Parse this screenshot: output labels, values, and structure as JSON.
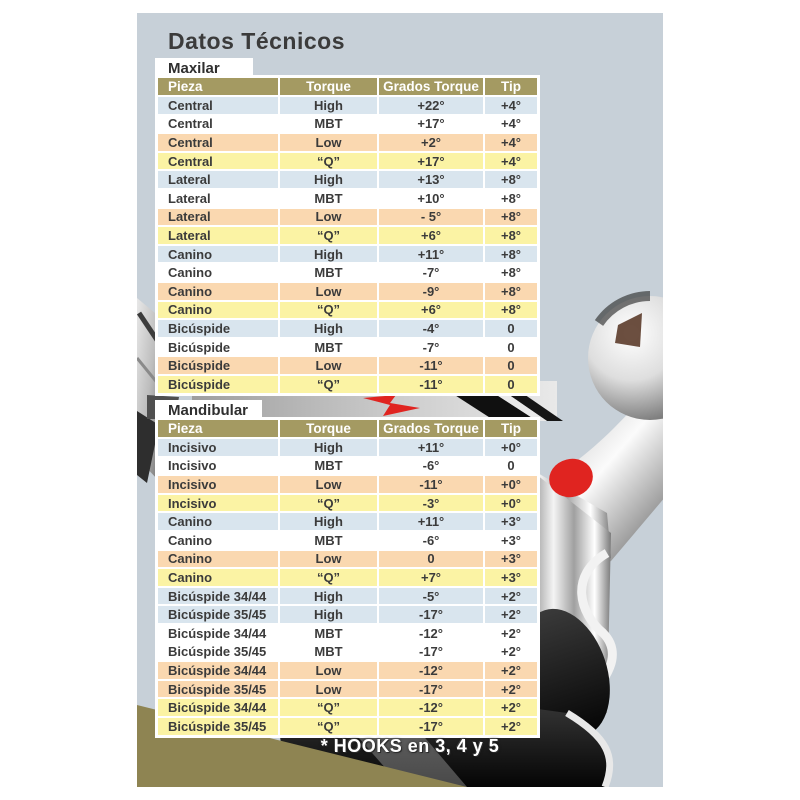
{
  "title": "Datos Técnicos",
  "footnote": "* HOOKS en 3, 4 y 5",
  "columns": [
    "Pieza",
    "Torque",
    "Grados Torque",
    "Tip"
  ],
  "tables": [
    {
      "tab": "Maxilar",
      "rows": [
        {
          "pieza": "Central",
          "torque": "High",
          "grados": "+22°",
          "tip": "+4°",
          "c": "rblue"
        },
        {
          "pieza": "Central",
          "torque": "MBT",
          "grados": "+17°",
          "tip": "+4°",
          "c": "rwhite"
        },
        {
          "pieza": "Central",
          "torque": "Low",
          "grados": "+2°",
          "tip": "+4°",
          "c": "rpeach"
        },
        {
          "pieza": "Central",
          "torque": "“Q”",
          "grados": "+17°",
          "tip": "+4°",
          "c": "ryellow"
        },
        {
          "pieza": "Lateral",
          "torque": "High",
          "grados": "+13°",
          "tip": "+8°",
          "c": "rblue"
        },
        {
          "pieza": "Lateral",
          "torque": "MBT",
          "grados": "+10°",
          "tip": "+8°",
          "c": "rwhite"
        },
        {
          "pieza": "Lateral",
          "torque": "Low",
          "grados": "- 5°",
          "tip": "+8°",
          "c": "rpeach"
        },
        {
          "pieza": "Lateral",
          "torque": "“Q”",
          "grados": "+6°",
          "tip": "+8°",
          "c": "ryellow"
        },
        {
          "pieza": "Canino",
          "torque": "High",
          "grados": "+11°",
          "tip": "+8°",
          "c": "rblue"
        },
        {
          "pieza": "Canino",
          "torque": "MBT",
          "grados": "-7°",
          "tip": "+8°",
          "c": "rwhite"
        },
        {
          "pieza": "Canino",
          "torque": "Low",
          "grados": "-9°",
          "tip": "+8°",
          "c": "rpeach"
        },
        {
          "pieza": "Canino",
          "torque": "“Q”",
          "grados": "+6°",
          "tip": "+8°",
          "c": "ryellow"
        },
        {
          "pieza": "Bicúspide",
          "torque": "High",
          "grados": "-4°",
          "tip": "0",
          "c": "rblue"
        },
        {
          "pieza": "Bicúspide",
          "torque": "MBT",
          "grados": "-7°",
          "tip": "0",
          "c": "rwhite"
        },
        {
          "pieza": "Bicúspide",
          "torque": "Low",
          "grados": "-11°",
          "tip": "0",
          "c": "rpeach"
        },
        {
          "pieza": "Bicúspide",
          "torque": "“Q”",
          "grados": "-11°",
          "tip": "0",
          "c": "ryellow"
        }
      ]
    },
    {
      "tab": "Mandibular",
      "rows": [
        {
          "pieza": "Incisivo",
          "torque": "High",
          "grados": "+11°",
          "tip": "+0°",
          "c": "rblue"
        },
        {
          "pieza": "Incisivo",
          "torque": "MBT",
          "grados": "-6°",
          "tip": "0",
          "c": "rwhite"
        },
        {
          "pieza": "Incisivo",
          "torque": "Low",
          "grados": "-11°",
          "tip": "+0°",
          "c": "rpeach"
        },
        {
          "pieza": "Incisivo",
          "torque": "“Q”",
          "grados": "-3°",
          "tip": "+0°",
          "c": "ryellow"
        },
        {
          "pieza": "Canino",
          "torque": "High",
          "grados": "+11°",
          "tip": "+3°",
          "c": "rblue"
        },
        {
          "pieza": "Canino",
          "torque": "MBT",
          "grados": "-6°",
          "tip": "+3°",
          "c": "rwhite"
        },
        {
          "pieza": "Canino",
          "torque": "Low",
          "grados": "0",
          "tip": "+3°",
          "c": "rpeach"
        },
        {
          "pieza": "Canino",
          "torque": "“Q”",
          "grados": "+7°",
          "tip": "+3°",
          "c": "ryellow"
        },
        {
          "pieza": "Bicúspide 34/44",
          "torque": "High",
          "grados": "-5°",
          "tip": "+2°",
          "c": "rblue"
        },
        {
          "pieza": "Bicúspide 35/45",
          "torque": "High",
          "grados": "-17°",
          "tip": "+2°",
          "c": "rblue"
        },
        {
          "pieza": "Bicúspide 34/44",
          "torque": "MBT",
          "grados": "-12°",
          "tip": "+2°",
          "c": "rwhite"
        },
        {
          "pieza": "Bicúspide 35/45",
          "torque": "MBT",
          "grados": "-17°",
          "tip": "+2°",
          "c": "rwhite"
        },
        {
          "pieza": "Bicúspide 34/44",
          "torque": "Low",
          "grados": "-12°",
          "tip": "+2°",
          "c": "rpeach"
        },
        {
          "pieza": "Bicúspide 35/45",
          "torque": "Low",
          "grados": "-17°",
          "tip": "+2°",
          "c": "rpeach"
        },
        {
          "pieza": "Bicúspide 34/44",
          "torque": "“Q”",
          "grados": "-12°",
          "tip": "+2°",
          "c": "ryellow"
        },
        {
          "pieza": "Bicúspide 35/45",
          "torque": "“Q”",
          "grados": "-17°",
          "tip": "+2°",
          "c": "ryellow"
        }
      ]
    }
  ],
  "colors": {
    "header_bg": "#a49a62",
    "row_blue": "#d9e5ee",
    "row_white": "#ffffff",
    "row_peach": "#fad8b0",
    "row_yellow": "#fbf3a4",
    "canvas_bg": "#c7d0d8",
    "wedge_khaki": "#8e8452",
    "accent_red": "#e02420",
    "text": "#3b3b3b"
  },
  "icons": {
    "red_arrow": "red-arrow-icon",
    "red_dot": "red-dot-marker"
  }
}
